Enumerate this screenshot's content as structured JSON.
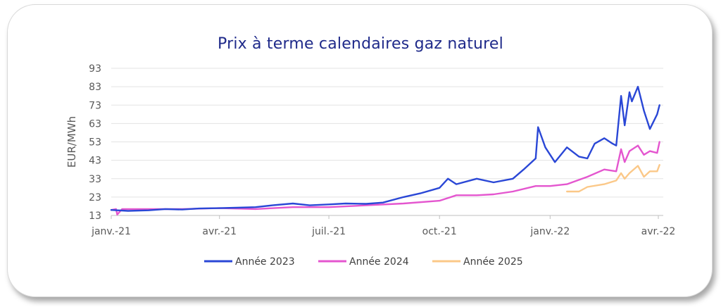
{
  "chart_data": {
    "type": "line",
    "title": "Prix à terme calendaires gaz naturel",
    "ylabel": "EUR/MWh",
    "xlabel": "",
    "ylim": [
      13,
      93
    ],
    "yticks": [
      13,
      23,
      33,
      43,
      53,
      63,
      73,
      83,
      93
    ],
    "xticks": [
      "janv.-21",
      "avr.-21",
      "juil.-21",
      "oct.-21",
      "janv.-22",
      "avr.-22"
    ],
    "xtick_dates": [
      "2021-01-01",
      "2021-04-01",
      "2021-07-01",
      "2021-10-01",
      "2022-01-01",
      "2022-04-01"
    ],
    "grid": "horizontal",
    "legend": "bottom",
    "series": [
      {
        "name": "Année 2023",
        "color": "#2a47d6",
        "x": [
          "2021-01-01",
          "2021-01-15",
          "2021-02-01",
          "2021-02-15",
          "2021-03-01",
          "2021-03-15",
          "2021-04-01",
          "2021-04-15",
          "2021-05-01",
          "2021-05-15",
          "2021-06-01",
          "2021-06-15",
          "2021-07-01",
          "2021-07-15",
          "2021-08-01",
          "2021-08-15",
          "2021-09-01",
          "2021-09-15",
          "2021-10-01",
          "2021-10-08",
          "2021-10-15",
          "2021-11-01",
          "2021-11-15",
          "2021-12-01",
          "2021-12-10",
          "2021-12-20",
          "2021-12-22",
          "2021-12-28",
          "2022-01-05",
          "2022-01-15",
          "2022-01-25",
          "2022-02-01",
          "2022-02-07",
          "2022-02-15",
          "2022-02-22",
          "2022-02-25",
          "2022-03-01",
          "2022-03-04",
          "2022-03-08",
          "2022-03-10",
          "2022-03-15",
          "2022-03-20",
          "2022-03-25",
          "2022-03-31",
          "2022-04-02"
        ],
        "values": [
          16.0,
          15.5,
          15.8,
          16.5,
          16.2,
          16.8,
          17.0,
          17.2,
          17.5,
          18.5,
          19.5,
          18.5,
          19.0,
          19.5,
          19.3,
          20.0,
          23.0,
          25.0,
          28.0,
          33.0,
          30.0,
          33.0,
          31.0,
          33.0,
          38.0,
          44.0,
          61.0,
          50.0,
          42.0,
          50.0,
          45.0,
          44.0,
          52.0,
          55.0,
          52.0,
          51.0,
          78.0,
          62.0,
          80.0,
          75.0,
          83.0,
          70.0,
          60.0,
          68.0,
          73.0
        ]
      },
      {
        "name": "Année 2024",
        "color": "#e456cf",
        "x": [
          "2021-01-01",
          "2021-01-05",
          "2021-01-06",
          "2021-01-10",
          "2021-02-01",
          "2021-03-01",
          "2021-04-01",
          "2021-05-01",
          "2021-06-01",
          "2021-07-01",
          "2021-08-01",
          "2021-09-01",
          "2021-10-01",
          "2021-10-15",
          "2021-11-01",
          "2021-11-15",
          "2021-12-01",
          "2021-12-20",
          "2022-01-01",
          "2022-01-15",
          "2022-02-01",
          "2022-02-15",
          "2022-02-25",
          "2022-03-01",
          "2022-03-04",
          "2022-03-08",
          "2022-03-15",
          "2022-03-20",
          "2022-03-25",
          "2022-03-31",
          "2022-04-02"
        ],
        "values": [
          16.0,
          16.5,
          13.5,
          16.5,
          16.5,
          16.5,
          17.0,
          16.5,
          17.5,
          17.5,
          18.5,
          19.5,
          21.0,
          24.0,
          24.0,
          24.5,
          26.0,
          29.0,
          29.0,
          30.0,
          34.0,
          38.0,
          37.0,
          49.0,
          42.0,
          48.0,
          51.0,
          46.0,
          48.0,
          47.0,
          53.0
        ]
      },
      {
        "name": "Année 2025",
        "color": "#fbc888",
        "x": [
          "2022-01-15",
          "2022-01-25",
          "2022-02-01",
          "2022-02-15",
          "2022-02-25",
          "2022-03-01",
          "2022-03-04",
          "2022-03-08",
          "2022-03-15",
          "2022-03-20",
          "2022-03-25",
          "2022-03-31",
          "2022-04-02"
        ],
        "values": [
          26.0,
          26.0,
          28.5,
          30.0,
          32.0,
          36.0,
          33.0,
          36.0,
          40.0,
          34.0,
          37.0,
          37.0,
          40.5
        ]
      }
    ]
  }
}
